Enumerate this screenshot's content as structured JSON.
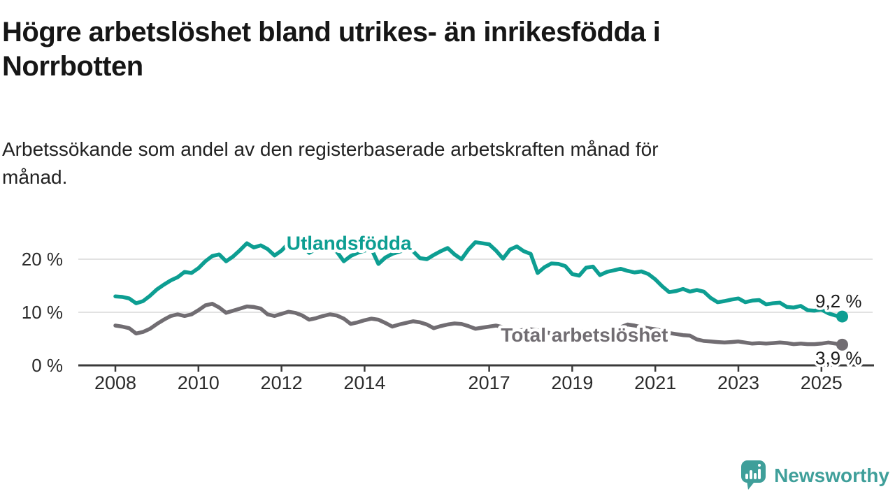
{
  "header": {
    "title": "Högre arbetslöshet bland utrikes- än inrikesfödda i\nNorrbotten",
    "subtitle": "Arbetssökande som andel av den registerbaserade arbetskraften månad för\nmånad."
  },
  "chart_data": {
    "type": "line",
    "title": "Högre arbetslöshet bland utrikes- än inrikesfödda i Norrbotten",
    "subtitle": "Arbetssökande som andel av den registerbaserade arbetskraften månad för månad.",
    "unit": "%",
    "grid": "horizontal",
    "legend_position": "inline-labels",
    "xlim": [
      2007.1,
      2026.3
    ],
    "ylim": [
      0,
      26
    ],
    "x_ticks": [
      2008,
      2010,
      2012,
      2014,
      2017,
      2019,
      2021,
      2023,
      2025
    ],
    "x_tick_labels": [
      "2008",
      "2010",
      "2012",
      "2014",
      "2017",
      "2019",
      "2021",
      "2023",
      "2025"
    ],
    "y_ticks": [
      0,
      10,
      20
    ],
    "y_tick_labels": [
      "0 %",
      "10 %",
      "20 %"
    ],
    "x_start": 2008.0,
    "x_step_years": 0.166667,
    "series": [
      {
        "name": "Total arbetslöshet",
        "color": "#716d72",
        "end_label": "3,9 %",
        "end_value": 3.9,
        "label_anchor": {
          "year": 2017.28,
          "value": 4.5
        },
        "values": [
          7.5,
          7.3,
          7.0,
          6.0,
          6.3,
          6.9,
          7.8,
          8.6,
          9.3,
          9.6,
          9.3,
          9.6,
          10.4,
          11.3,
          11.6,
          10.9,
          9.9,
          10.3,
          10.7,
          11.1,
          11.0,
          10.7,
          9.6,
          9.3,
          9.7,
          10.1,
          9.9,
          9.4,
          8.6,
          8.9,
          9.3,
          9.6,
          9.4,
          8.8,
          7.8,
          8.1,
          8.5,
          8.8,
          8.6,
          8.0,
          7.3,
          7.7,
          8.0,
          8.3,
          8.1,
          7.7,
          7.0,
          7.4,
          7.7,
          7.9,
          7.8,
          7.4,
          6.9,
          7.1,
          7.3,
          7.5,
          7.2,
          6.8,
          6.5,
          6.7,
          6.8,
          6.6,
          6.3,
          6.0,
          6.2,
          6.4,
          6.5,
          6.4,
          6.2,
          6.0,
          6.1,
          6.3,
          6.5,
          7.2,
          7.7,
          7.5,
          7.2,
          7.0,
          6.8,
          6.5,
          6.1,
          5.9,
          5.7,
          5.6,
          4.9,
          4.6,
          4.5,
          4.4,
          4.3,
          4.4,
          4.5,
          4.3,
          4.1,
          4.2,
          4.1,
          4.2,
          4.3,
          4.2,
          4.0,
          4.1,
          4.0,
          4.0,
          4.1,
          4.3,
          4.1,
          3.9
        ]
      },
      {
        "name": "Utlandsfödda",
        "color": "#0d9e92",
        "end_label": "9,2 %",
        "end_value": 9.2,
        "label_anchor": {
          "year": 2012.12,
          "value": 21.8
        },
        "values": [
          13.0,
          12.9,
          12.6,
          11.7,
          12.1,
          13.1,
          14.3,
          15.2,
          16.0,
          16.6,
          17.6,
          17.4,
          18.3,
          19.6,
          20.6,
          20.9,
          19.6,
          20.5,
          21.7,
          23.0,
          22.2,
          22.6,
          21.9,
          20.7,
          21.6,
          23.0,
          23.4,
          22.4,
          21.2,
          21.9,
          22.3,
          22.0,
          21.4,
          19.6,
          20.6,
          21.2,
          21.6,
          21.9,
          19.1,
          20.3,
          21.0,
          21.4,
          21.8,
          21.5,
          20.2,
          20.0,
          20.8,
          21.5,
          22.1,
          20.9,
          20.0,
          21.8,
          23.2,
          23.0,
          22.8,
          21.6,
          20.1,
          21.8,
          22.4,
          21.5,
          21.0,
          17.4,
          18.5,
          19.2,
          19.1,
          18.7,
          17.2,
          16.9,
          18.4,
          18.6,
          17.0,
          17.6,
          17.9,
          18.2,
          17.8,
          17.5,
          17.7,
          17.2,
          16.2,
          14.9,
          13.8,
          14.0,
          14.4,
          13.9,
          14.2,
          13.9,
          12.7,
          11.9,
          12.1,
          12.4,
          12.6,
          11.9,
          12.2,
          12.3,
          11.5,
          11.7,
          11.8,
          11.0,
          10.9,
          11.2,
          10.4,
          10.3,
          10.5,
          9.8,
          9.4,
          9.2
        ]
      }
    ],
    "colors": {
      "axis": "#3a3a3a",
      "gridline": "#d8d8d8",
      "tick_text": "#2b2b2b",
      "end_label_text": "#1a1a1a"
    }
  },
  "footer": {
    "brand": "Newsworthy",
    "brand_color": "#3f9f9a",
    "logo_icon": "speech-bubble-bar-chart-icon"
  }
}
